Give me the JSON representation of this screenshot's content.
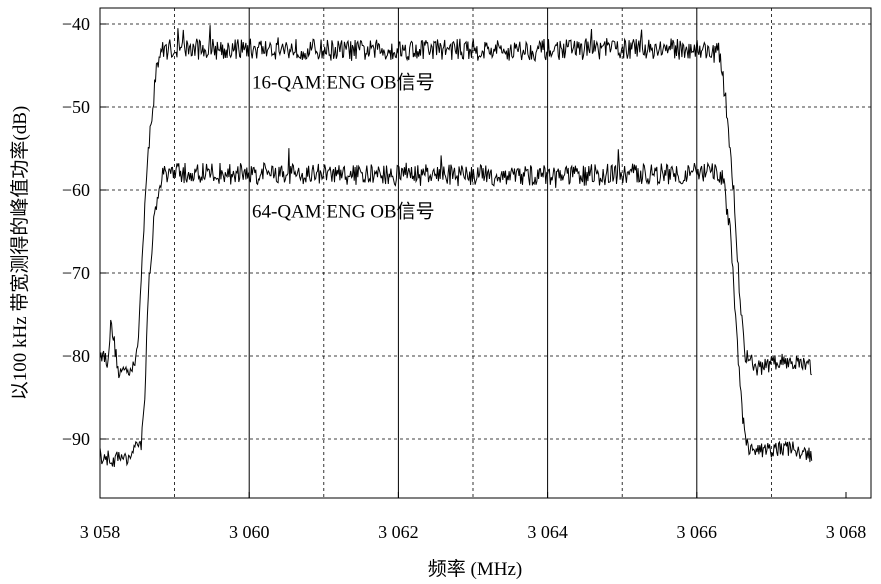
{
  "chart_data": {
    "type": "line",
    "title": "",
    "xlabel": "频率 (MHz)",
    "ylabel": "以100 kHz 带宽测得的峰值功率(dB)",
    "xlim": [
      3058,
      3068
    ],
    "ylim": [
      -97,
      -38
    ],
    "x_ticks": [
      3058,
      3060,
      3062,
      3064,
      3066,
      3068
    ],
    "x_tick_labels": [
      "3 058",
      "3 060",
      "3 062",
      "3 064",
      "3 066",
      "3 068"
    ],
    "y_ticks": [
      -40,
      -50,
      -60,
      -70,
      -80,
      -90
    ],
    "y_tick_labels": [
      "−40",
      "−50",
      "−60",
      "−70",
      "−80",
      "−90"
    ],
    "x_solid_gridlines": [
      3060,
      3062,
      3064,
      3066
    ],
    "x_dashed_gridlines": [
      3059,
      3061,
      3063,
      3065,
      3067
    ],
    "grid": true,
    "series": [
      {
        "name": "16-QAM ENG OB信号",
        "x": [
          3058.0,
          3058.1,
          3058.15,
          3058.25,
          3058.4,
          3058.5,
          3058.6,
          3058.68,
          3058.75,
          3058.8,
          3058.9,
          3059.5,
          3060.5,
          3061.5,
          3062.5,
          3063.5,
          3064.5,
          3065.5,
          3066.0,
          3066.3,
          3066.4,
          3066.5,
          3066.58,
          3066.65,
          3066.8,
          3067.0,
          3067.2,
          3067.4,
          3067.55
        ],
        "y": [
          -79.5,
          -80.5,
          -76.0,
          -82.0,
          -81.5,
          -80.0,
          -62.0,
          -52.0,
          -46.0,
          -43.5,
          -43.0,
          -43.0,
          -43.0,
          -43.2,
          -43.0,
          -43.2,
          -43.0,
          -43.0,
          -43.0,
          -43.5,
          -50.0,
          -62.0,
          -73.0,
          -80.0,
          -81.5,
          -81.0,
          -80.5,
          -81.0,
          -81.5
        ],
        "label_position": [
          3058.0,
          -47.8
        ]
      },
      {
        "name": "64-QAM ENG OB信号",
        "x": [
          3058.0,
          3058.2,
          3058.4,
          3058.55,
          3058.6,
          3058.65,
          3058.72,
          3058.8,
          3058.9,
          3059.5,
          3060.5,
          3061.5,
          3062.5,
          3063.5,
          3064.5,
          3065.5,
          3066.2,
          3066.35,
          3066.45,
          3066.55,
          3066.62,
          3066.7,
          3066.9,
          3067.2,
          3067.55
        ],
        "y": [
          -92.0,
          -92.5,
          -92.0,
          -91.0,
          -85.0,
          -72.0,
          -64.0,
          -59.0,
          -58.0,
          -58.0,
          -58.0,
          -58.2,
          -58.2,
          -58.3,
          -58.2,
          -58.0,
          -58.0,
          -58.5,
          -65.0,
          -80.0,
          -88.0,
          -91.5,
          -91.5,
          -91.0,
          -92.0
        ],
        "label_position": [
          3058.0,
          -63.3
        ]
      }
    ]
  }
}
